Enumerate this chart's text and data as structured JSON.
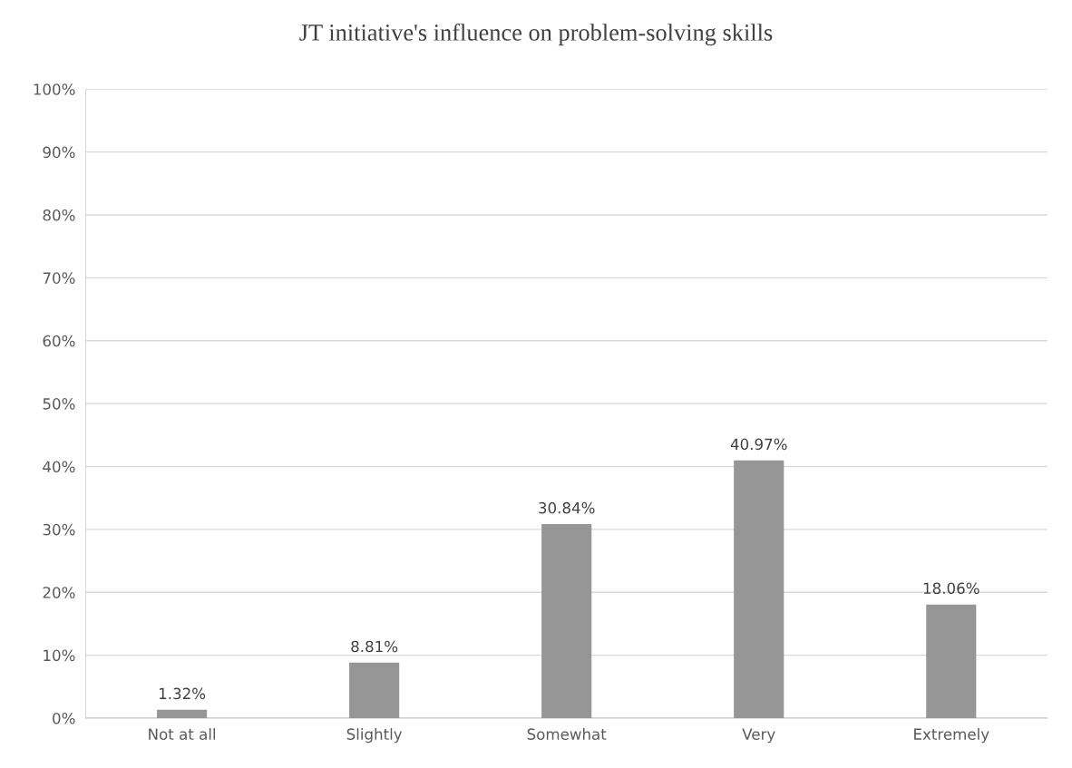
{
  "chart_data": {
    "type": "bar",
    "title": "JT initiative's influence on problem-solving skills",
    "categories": [
      "Not at all",
      "Slightly",
      "Somewhat",
      "Very",
      "Extremely"
    ],
    "values": [
      1.32,
      8.81,
      30.84,
      40.97,
      18.06
    ],
    "value_labels": [
      "1.32%",
      "8.81%",
      "30.84%",
      "40.97%",
      "18.06%"
    ],
    "color": "#969696",
    "ylim": [
      0,
      100
    ],
    "yticks": [
      {
        "value": 0,
        "label": "0%"
      },
      {
        "value": 10,
        "label": "10%"
      },
      {
        "value": 20,
        "label": "20%"
      },
      {
        "value": 30,
        "label": "30%"
      },
      {
        "value": 40,
        "label": "40%"
      },
      {
        "value": 50,
        "label": "50%"
      },
      {
        "value": 60,
        "label": "60%"
      },
      {
        "value": 70,
        "label": "70%"
      },
      {
        "value": 80,
        "label": "80%"
      },
      {
        "value": 90,
        "label": "90%"
      },
      {
        "value": 100,
        "label": "100%"
      }
    ],
    "grid": "y",
    "legend": false
  }
}
